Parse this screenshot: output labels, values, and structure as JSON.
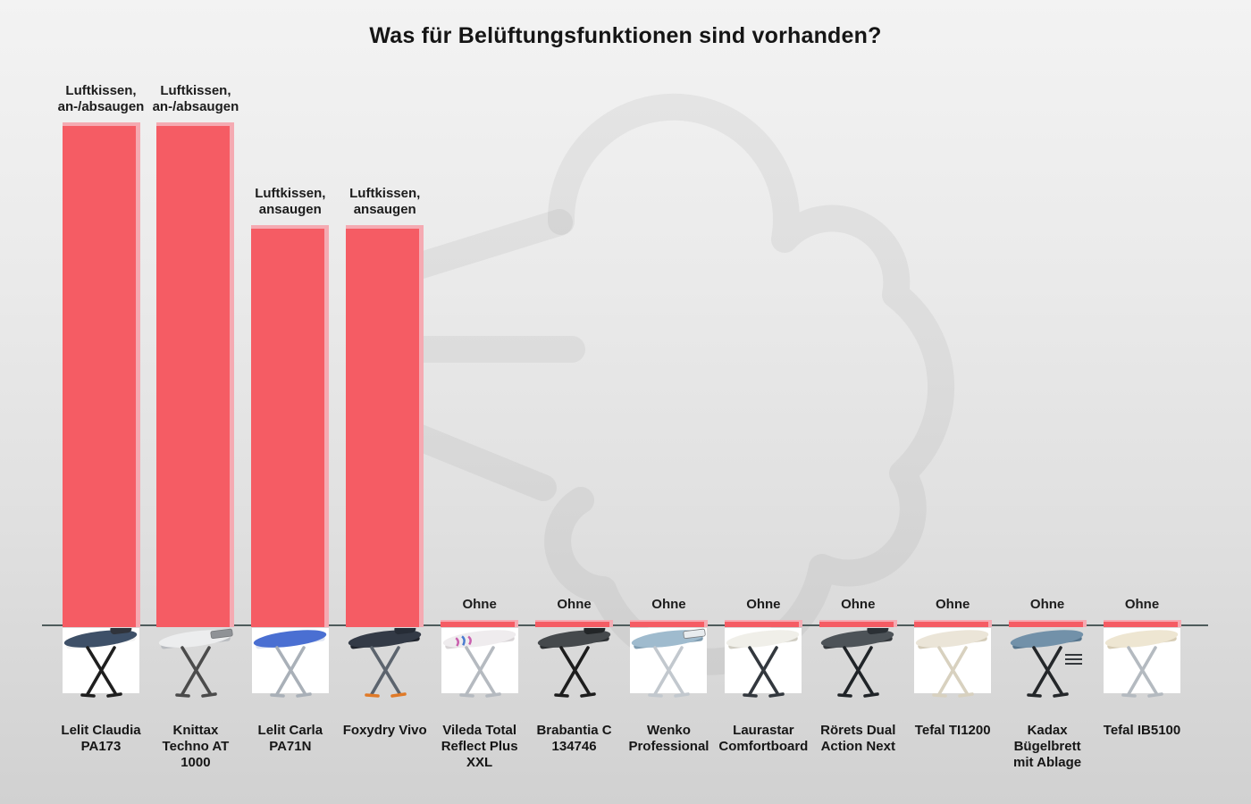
{
  "title": "Was für Belüftungsfunktionen sind vorhanden?",
  "colors": {
    "bar": "#f55c64",
    "bar_highlight": "#f5aab2",
    "axis_line": "#4e5c5c",
    "text": "#1a1a1a",
    "background_top": "#f3f3f3",
    "background_bottom": "#d1d1d1",
    "watermark": "rgba(110,110,110,0.085)"
  },
  "watermark_icon": "wind-gust",
  "chart_data": {
    "type": "bar",
    "title": "Was für Belüftungsfunktionen sind vorhanden?",
    "categories": [
      "Lelit Claudia PA173",
      "Knittax Techno AT 1000",
      "Lelit Carla PA71N",
      "Foxydry Vivo",
      "Vileda Total Reflect Plus XXL",
      "Brabantia C 134746",
      "Wenko Professional",
      "Laurastar Comfortboard",
      "Rörets Dual Action Next",
      "Tefal TI1200",
      "Kadax Bügelbrett mit Ablage",
      "Tefal IB5100"
    ],
    "value_labels": [
      "Luftkissen,\nan-/absaugen",
      "Luftkissen,\nan-/absaugen",
      "Luftkissen,\nansaugen",
      "Luftkissen,\nansaugen",
      "Ohne",
      "Ohne",
      "Ohne",
      "Ohne",
      "Ohne",
      "Ohne",
      "Ohne",
      "Ohne"
    ],
    "values": [
      100,
      100,
      79.6,
      79.6,
      1.4,
      1.4,
      1.4,
      1.4,
      1.4,
      1.4,
      1.4,
      1.4
    ],
    "units": "relative bar height (categorical feature chart)",
    "xlabel": "",
    "ylabel": "",
    "ylim": [
      0,
      100
    ],
    "grid": false,
    "legend": false,
    "bar_color": "#f55c64"
  },
  "products": [
    {
      "name": "Lelit Claudia PA173",
      "function_label": "Luftkissen,\nan-/absaugen",
      "value": 100,
      "image": {
        "photo_bg": true,
        "board": "#3e5068",
        "board_edge": "#f2f2f2",
        "legs": "#1f1f1f",
        "feet": "",
        "accent": "iron",
        "accent_color": "#30343c",
        "pattern": ""
      }
    },
    {
      "name": "Knittax Techno AT 1000",
      "function_label": "Luftkissen,\nan-/absaugen",
      "value": 100,
      "image": {
        "photo_bg": false,
        "board": "#ecedee",
        "board_edge": "#b9bcc0",
        "legs": "#4b4b4b",
        "feet": "",
        "accent": "tray",
        "accent_color": "#8f9296",
        "pattern": ""
      }
    },
    {
      "name": "Lelit Carla PA71N",
      "function_label": "Luftkissen,\nansaugen",
      "value": 79.6,
      "image": {
        "photo_bg": true,
        "board": "#4a6fd2",
        "board_edge": "#dfe5f2",
        "legs": "#a9b0b8",
        "feet": "",
        "accent": "",
        "accent_color": "",
        "pattern": ""
      }
    },
    {
      "name": "Foxydry Vivo",
      "function_label": "Luftkissen,\nansaugen",
      "value": 79.6,
      "image": {
        "photo_bg": false,
        "board": "#333a46",
        "board_edge": "#20242c",
        "legs": "#5c646e",
        "feet": "#e07a28",
        "accent": "iron",
        "accent_color": "#262c36",
        "pattern": ""
      }
    },
    {
      "name": "Vileda Total Reflect Plus XXL",
      "function_label": "Ohne",
      "value": 1.4,
      "image": {
        "photo_bg": true,
        "board": "#efecee",
        "board_edge": "#d8d4d6",
        "legs": "#b5bac0",
        "feet": "",
        "accent": "",
        "accent_color": "",
        "pattern": "waves",
        "pattern_colors": [
          "#c95fae",
          "#4a7bd0"
        ]
      }
    },
    {
      "name": "Brabantia C 134746",
      "function_label": "Ohne",
      "value": 1.4,
      "image": {
        "photo_bg": false,
        "board": "#45494c",
        "board_edge": "#2c2f31",
        "legs": "#1d1d1d",
        "feet": "",
        "accent": "iron",
        "accent_color": "#222527",
        "pattern": ""
      }
    },
    {
      "name": "Wenko Professional",
      "function_label": "Ohne",
      "value": 1.4,
      "image": {
        "photo_bg": true,
        "board": "#9fbbce",
        "board_edge": "#7f9cb0",
        "legs": "#c2c8ce",
        "feet": "",
        "accent": "tray",
        "accent_color": "#e8ecef",
        "pattern": ""
      }
    },
    {
      "name": "Laurastar Comfortboard",
      "function_label": "Ohne",
      "value": 1.4,
      "image": {
        "photo_bg": true,
        "board": "#f0efe9",
        "board_edge": "#cfccc2",
        "legs": "#33383e",
        "feet": "",
        "accent": "",
        "accent_color": "",
        "pattern": ""
      }
    },
    {
      "name": "Rörets Dual Action Next",
      "function_label": "Ohne",
      "value": 1.4,
      "image": {
        "photo_bg": false,
        "board": "#4d5358",
        "board_edge": "#33373b",
        "legs": "#202428",
        "feet": "",
        "accent": "iron",
        "accent_color": "#2b3035",
        "pattern": ""
      }
    },
    {
      "name": "Tefal TI1200",
      "function_label": "Ohne",
      "value": 1.4,
      "image": {
        "photo_bg": true,
        "board": "#ebe5d8",
        "board_edge": "#d3cbb8",
        "legs": "#d8d1bf",
        "feet": "",
        "accent": "",
        "accent_color": "",
        "pattern": ""
      }
    },
    {
      "name": "Kadax Bügelbrett mit Ablage",
      "function_label": "Ohne",
      "value": 1.4,
      "image": {
        "photo_bg": false,
        "board": "#7291a9",
        "board_edge": "#55748c",
        "legs": "#24272a",
        "feet": "",
        "accent": "shelf",
        "accent_color": "#34383c",
        "pattern": ""
      }
    },
    {
      "name": "Tefal IB5100",
      "function_label": "Ohne",
      "value": 1.4,
      "image": {
        "photo_bg": true,
        "board": "#eee6d2",
        "board_edge": "#d6ccb4",
        "legs": "#b4bac0",
        "feet": "",
        "accent": "",
        "accent_color": "",
        "pattern": ""
      }
    }
  ]
}
